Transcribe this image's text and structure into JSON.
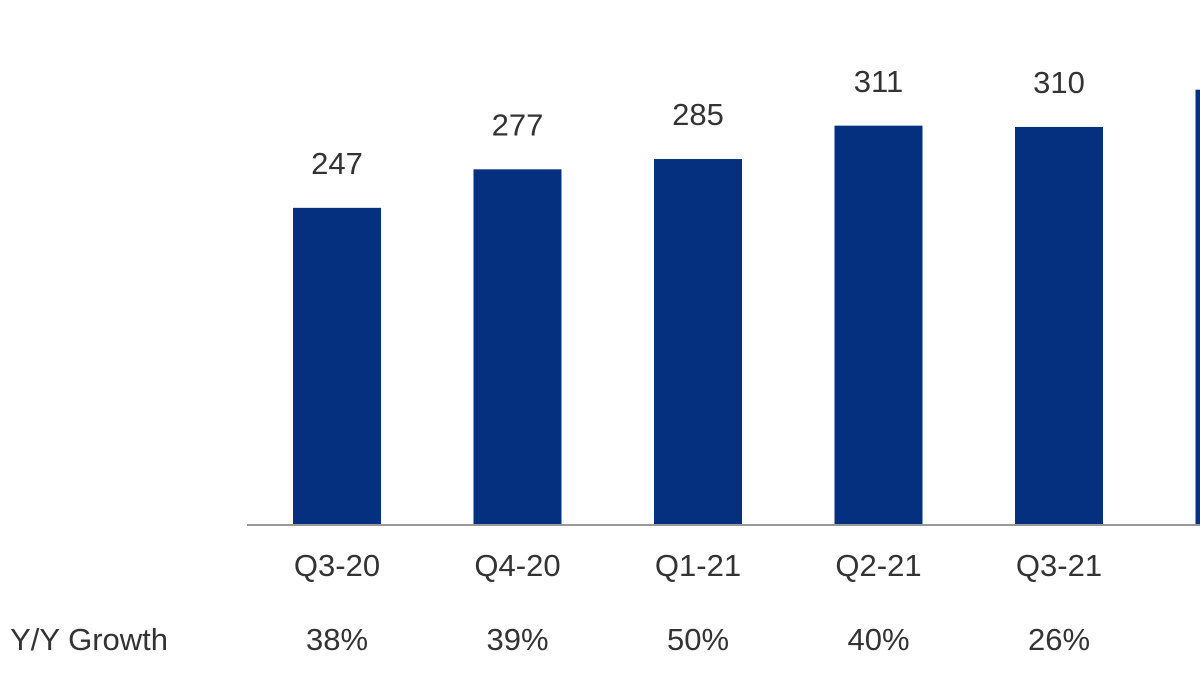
{
  "chart_data": {
    "type": "bar",
    "categories": [
      "Q3-20",
      "Q4-20",
      "Q1-21",
      "Q2-21",
      "Q3-21",
      null
    ],
    "values": [
      247,
      277,
      285,
      311,
      310,
      339
    ],
    "color": "#05307f",
    "ylim": [
      0,
      345
    ],
    "growth": {
      "label": "Y/Y Growth",
      "values": [
        "38%",
        "39%",
        "50%",
        "40%",
        "26%",
        null
      ]
    }
  }
}
